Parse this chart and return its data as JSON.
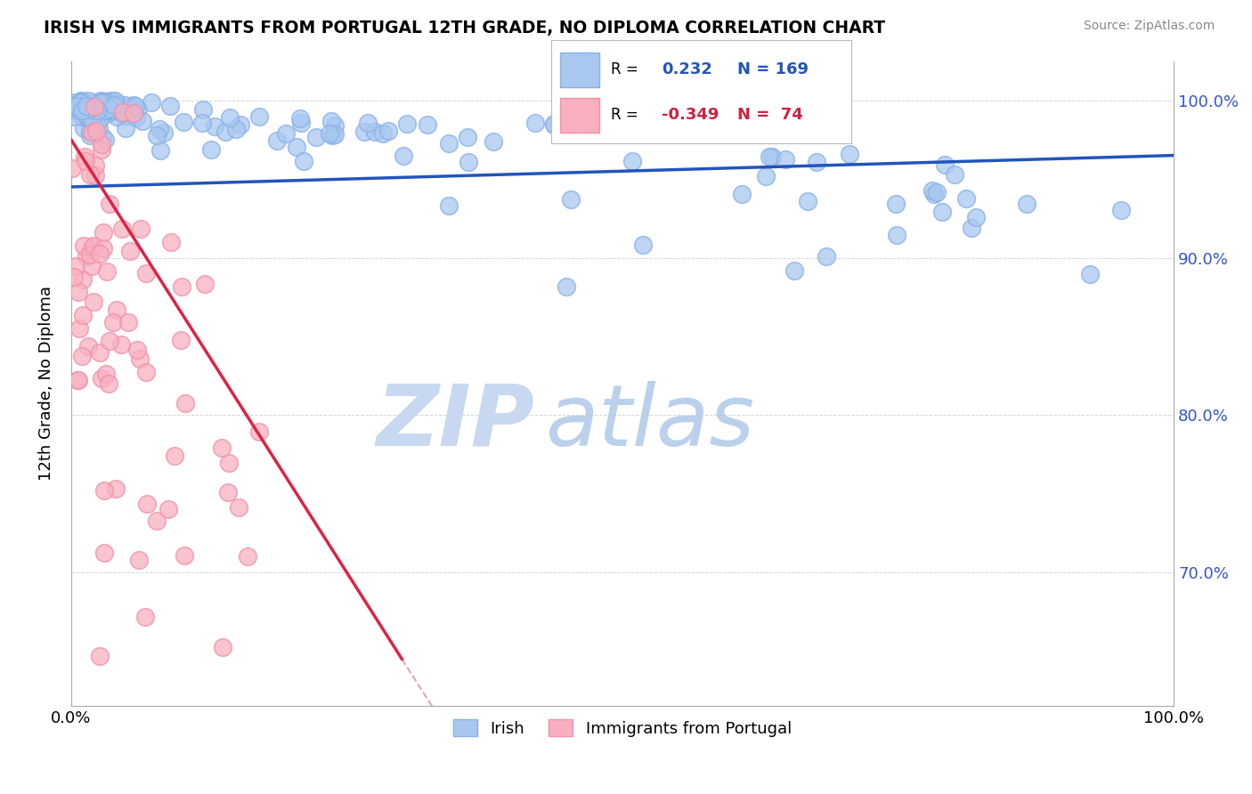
{
  "title": "IRISH VS IMMIGRANTS FROM PORTUGAL 12TH GRADE, NO DIPLOMA CORRELATION CHART",
  "source": "Source: ZipAtlas.com",
  "ylabel": "12th Grade, No Diploma",
  "x_tick_labels": [
    "0.0%",
    "100.0%"
  ],
  "y_tick_labels_right": [
    "70.0%",
    "80.0%",
    "90.0%",
    "100.0%"
  ],
  "legend_blue_label": "Irish",
  "legend_pink_label": "Immigrants from Portugal",
  "r_blue": 0.232,
  "n_blue": 169,
  "r_pink": -0.349,
  "n_pink": 74,
  "blue_color": "#A8C8F0",
  "blue_edge_color": "#88B0E8",
  "pink_color": "#F8B0C0",
  "pink_edge_color": "#F090A8",
  "blue_line_color": "#2255BB",
  "pink_line_color": "#DD2244",
  "pink_dashed_color": "#DDAAAA",
  "watermark_zip": "ZIP",
  "watermark_atlas": "atlas",
  "watermark_color_zip": "#C8D8F0",
  "watermark_color_atlas": "#B0C8E8",
  "background_color": "#FFFFFF",
  "grid_color": "#CCCCCC",
  "seed": 42,
  "xlim": [
    0.0,
    1.0
  ],
  "ylim": [
    0.615,
    1.025
  ]
}
